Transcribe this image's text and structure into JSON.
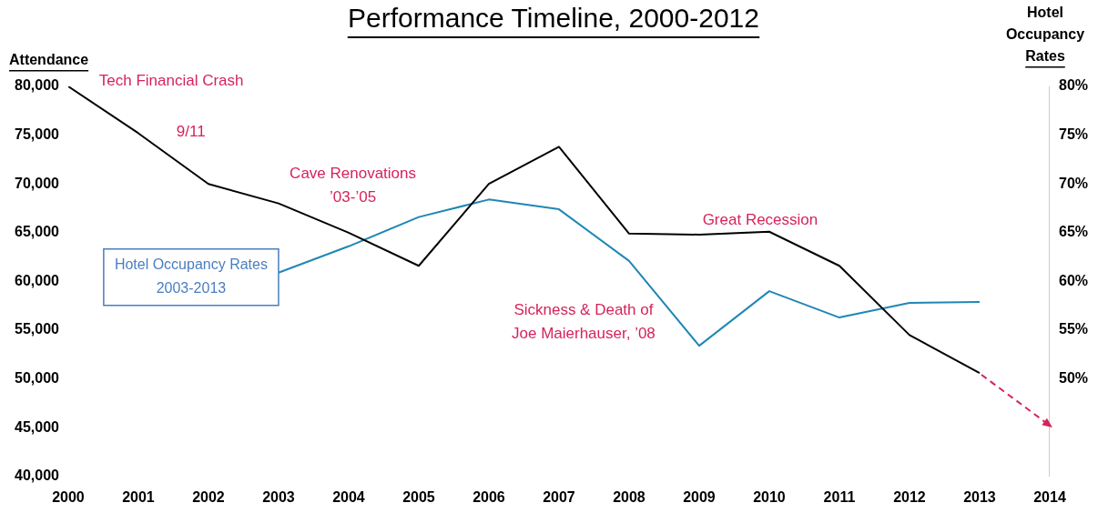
{
  "chart_data": {
    "type": "line",
    "title": "Performance Timeline, 2000-2012",
    "ylabel": "Attendance",
    "y2label": "Hotel Occupancy Rates",
    "x": [
      2000,
      2001,
      2002,
      2003,
      2004,
      2005,
      2006,
      2007,
      2008,
      2009,
      2010,
      2011,
      2012,
      2013
    ],
    "xlim": [
      2000,
      2014
    ],
    "xticks": [
      2000,
      2001,
      2002,
      2003,
      2004,
      2005,
      2006,
      2007,
      2008,
      2009,
      2010,
      2011,
      2012,
      2013,
      2014
    ],
    "ylim": [
      40000,
      80000
    ],
    "yticks": [
      {
        "value": 40000,
        "label": "40,000"
      },
      {
        "value": 45000,
        "label": "45,000"
      },
      {
        "value": 50000,
        "label": "50,000"
      },
      {
        "value": 55000,
        "label": "55,000"
      },
      {
        "value": 60000,
        "label": "60,000"
      },
      {
        "value": 65000,
        "label": "65,000"
      },
      {
        "value": 70000,
        "label": "70,000"
      },
      {
        "value": 75000,
        "label": "75,000"
      },
      {
        "value": 80000,
        "label": "80,000"
      }
    ],
    "y2lim": [
      40,
      80
    ],
    "y2ticks": [
      {
        "value": 50,
        "label": "50%"
      },
      {
        "value": 55,
        "label": "55%"
      },
      {
        "value": 60,
        "label": "60%"
      },
      {
        "value": 65,
        "label": "65%"
      },
      {
        "value": 70,
        "label": "70%"
      },
      {
        "value": 75,
        "label": "75%"
      },
      {
        "value": 80,
        "label": "80%"
      }
    ],
    "series": [
      {
        "color": "#000000",
        "values": [
          80000,
          75200,
          70000,
          68000,
          65000,
          61600,
          70000,
          73800,
          64900,
          64800,
          65100,
          61600,
          54500,
          50600
        ]
      },
      {
        "name": "Hotel Occupancy Rates 2003-2013",
        "color": "#1f87b5",
        "axis": "y2",
        "x": [
          2003,
          2004,
          2005,
          2006,
          2007,
          2008,
          2009,
          2010,
          2011,
          2012,
          2013
        ],
        "values": [
          60.9,
          63.6,
          66.6,
          68.4,
          67.4,
          62.1,
          53.4,
          59.0,
          56.3,
          57.8,
          57.9
        ]
      }
    ],
    "annotations": [
      "Tech Financial Crash",
      "9/11",
      "Cave Renovations\n’03-’05",
      "Great Recession",
      "Sickness & Death of\nJoe Maierhauser, ’08"
    ],
    "legend": false,
    "grid": false
  }
}
